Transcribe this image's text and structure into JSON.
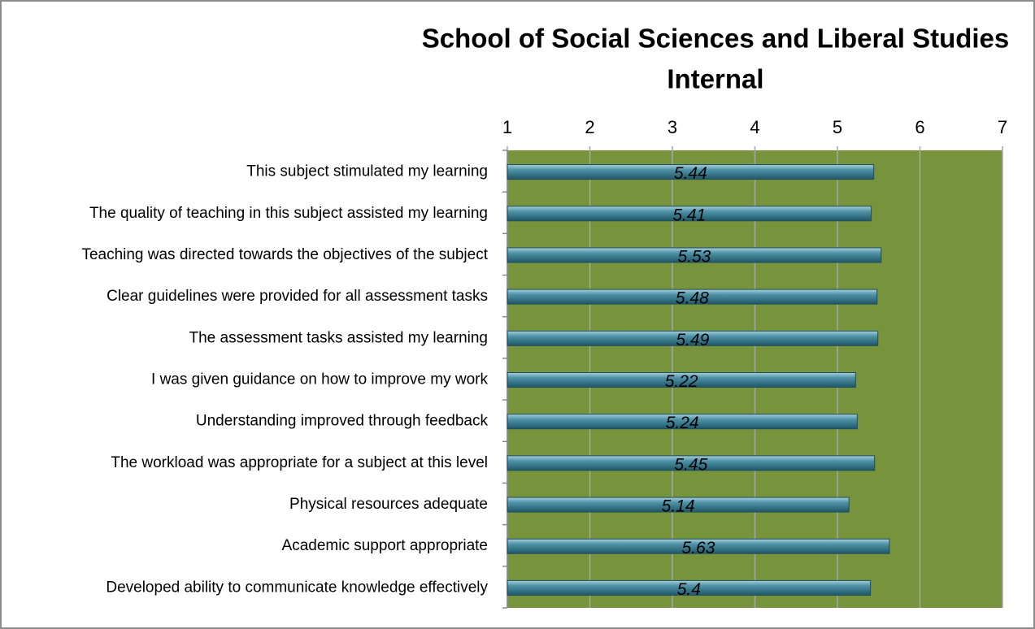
{
  "chart_data": {
    "type": "bar",
    "orientation": "horizontal",
    "title": "School of Social Sciences and Liberal Studies",
    "subtitle": "Internal",
    "categories": [
      "This subject stimulated my learning",
      "The quality of teaching in this subject assisted my learning",
      "Teaching was directed towards the objectives of the subject",
      "Clear guidelines were provided for all assessment tasks",
      "The assessment tasks assisted my learning",
      "I was given guidance on how to improve my work",
      "Understanding improved through feedback",
      "The workload was appropriate for a subject at this level",
      "Physical resources adequate",
      "Academic support appropriate",
      "Developed ability to communicate knowledge effectively"
    ],
    "values": [
      5.44,
      5.41,
      5.53,
      5.48,
      5.49,
      5.22,
      5.24,
      5.45,
      5.14,
      5.63,
      5.4
    ],
    "color": "#3f8196",
    "plot_background": "#77933c",
    "xlim": [
      1,
      7
    ],
    "xticks": [
      1,
      2,
      3,
      4,
      5,
      6,
      7
    ],
    "grid": true
  }
}
